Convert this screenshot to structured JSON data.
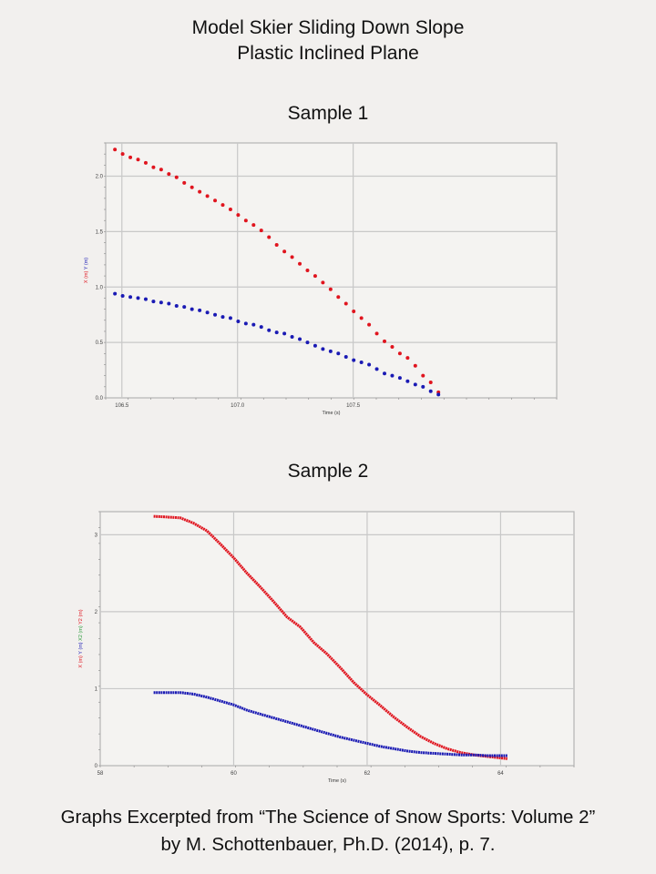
{
  "header": {
    "title_line1": "Model Skier Sliding Down Slope",
    "title_line2": "Plastic Inclined Plane"
  },
  "footer": {
    "line1": "Graphs Excerpted from “The Science of Snow Sports: Volume 2”",
    "line2": "by M. Schottenbauer, Ph.D. (2014), p. 7."
  },
  "colors": {
    "red": "#e0141e",
    "blue": "#1a1ab4",
    "green": "#2a9a3a",
    "grid": "#c8c8c8",
    "background": "#f2f0ee"
  },
  "chart_data": [
    {
      "type": "scatter",
      "title": "Sample 1",
      "xlabel": "Time (s)",
      "ylabel_parts": [
        {
          "text": "X (m)",
          "color": "#e0141e"
        },
        {
          "text": "Y (m)",
          "color": "#1a1ab4"
        }
      ],
      "xlim": [
        106.43,
        108.38
      ],
      "ylim": [
        0.0,
        2.3
      ],
      "xticks": [
        106.5,
        107.0,
        107.5
      ],
      "xtick_labels": [
        "106.5",
        "107.0",
        "107.5"
      ],
      "yticks": [
        0.0,
        0.5,
        1.0,
        1.5,
        2.0
      ],
      "ytick_labels": [
        "0.0",
        "0.5",
        "1.0",
        "1.5",
        "2.0"
      ],
      "grid": true,
      "x_start": 106.47,
      "x_step": 0.0333,
      "series": [
        {
          "name": "X (m)",
          "color": "#e0141e",
          "values": [
            2.24,
            2.2,
            2.17,
            2.15,
            2.12,
            2.08,
            2.06,
            2.02,
            1.99,
            1.94,
            1.9,
            1.86,
            1.82,
            1.78,
            1.74,
            1.7,
            1.65,
            1.6,
            1.56,
            1.51,
            1.45,
            1.38,
            1.32,
            1.27,
            1.21,
            1.15,
            1.1,
            1.04,
            0.98,
            0.91,
            0.85,
            0.78,
            0.72,
            0.66,
            0.58,
            0.51,
            0.46,
            0.4,
            0.36,
            0.29,
            0.2,
            0.14,
            0.05
          ]
        },
        {
          "name": "Y (m)",
          "color": "#1a1ab4",
          "values": [
            0.94,
            0.92,
            0.91,
            0.9,
            0.89,
            0.87,
            0.86,
            0.85,
            0.83,
            0.82,
            0.8,
            0.79,
            0.77,
            0.75,
            0.73,
            0.72,
            0.69,
            0.67,
            0.66,
            0.64,
            0.61,
            0.59,
            0.58,
            0.55,
            0.53,
            0.5,
            0.47,
            0.44,
            0.42,
            0.4,
            0.37,
            0.34,
            0.32,
            0.3,
            0.26,
            0.22,
            0.2,
            0.18,
            0.15,
            0.12,
            0.1,
            0.06,
            0.03
          ]
        }
      ]
    },
    {
      "type": "line",
      "title": "Sample 2",
      "xlabel": "Time (s)",
      "ylabel_parts": [
        {
          "text": "X (m)",
          "color": "#e0141e"
        },
        {
          "text": "Y (m)",
          "color": "#1a1ab4"
        },
        {
          "text": "X2 (m)",
          "color": "#2a9a3a"
        },
        {
          "text": "Y2 (m)",
          "color": "#e0141e"
        }
      ],
      "xlim": [
        58,
        65.1
      ],
      "ylim": [
        0,
        3.3
      ],
      "xticks": [
        58,
        60,
        62,
        64
      ],
      "xtick_labels": [
        "58",
        "60",
        "62",
        "64"
      ],
      "yticks": [
        0,
        1,
        2,
        3
      ],
      "ytick_labels": [
        "0",
        "1",
        "2",
        "3"
      ],
      "grid": true,
      "series": [
        {
          "name": "X (m)",
          "color": "#e0141e",
          "x": [
            58.8,
            59.0,
            59.2,
            59.4,
            59.6,
            59.8,
            60.0,
            60.2,
            60.4,
            60.6,
            60.8,
            61.0,
            61.2,
            61.4,
            61.6,
            61.8,
            62.0,
            62.2,
            62.4,
            62.6,
            62.8,
            63.0,
            63.2,
            63.4,
            63.6,
            63.8,
            64.0,
            64.1
          ],
          "values": [
            3.24,
            3.23,
            3.22,
            3.15,
            3.05,
            2.88,
            2.7,
            2.5,
            2.32,
            2.13,
            1.93,
            1.8,
            1.6,
            1.45,
            1.27,
            1.08,
            0.92,
            0.78,
            0.63,
            0.5,
            0.38,
            0.29,
            0.22,
            0.17,
            0.14,
            0.12,
            0.1,
            0.09
          ]
        },
        {
          "name": "Y (m)",
          "color": "#1a1ab4",
          "x": [
            58.8,
            59.0,
            59.2,
            59.4,
            59.6,
            59.8,
            60.0,
            60.2,
            60.4,
            60.6,
            60.8,
            61.0,
            61.2,
            61.4,
            61.6,
            61.8,
            62.0,
            62.2,
            62.4,
            62.6,
            62.8,
            63.0,
            63.2,
            63.4,
            63.6,
            63.8,
            64.0,
            64.1
          ],
          "values": [
            0.95,
            0.95,
            0.95,
            0.93,
            0.89,
            0.84,
            0.79,
            0.72,
            0.67,
            0.62,
            0.57,
            0.52,
            0.47,
            0.42,
            0.37,
            0.33,
            0.29,
            0.25,
            0.22,
            0.19,
            0.17,
            0.16,
            0.15,
            0.14,
            0.14,
            0.13,
            0.13,
            0.13
          ]
        }
      ]
    }
  ]
}
